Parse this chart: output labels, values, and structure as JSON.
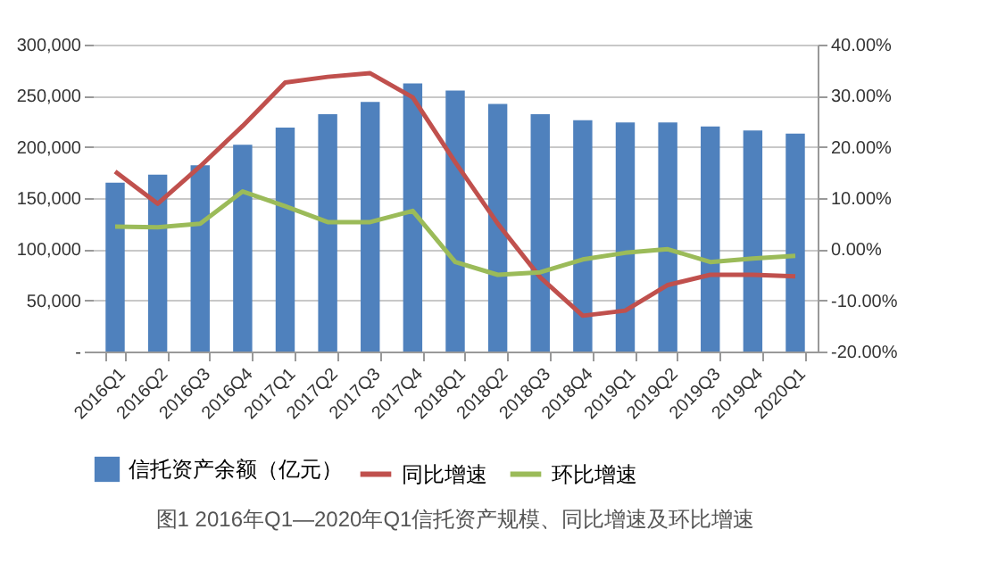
{
  "chart_data": {
    "type": "bar",
    "categories": [
      "2016Q1",
      "2016Q2",
      "2016Q3",
      "2016Q4",
      "2017Q1",
      "2017Q2",
      "2017Q3",
      "2017Q4",
      "2018Q1",
      "2018Q2",
      "2018Q3",
      "2018Q4",
      "2019Q1",
      "2019Q2",
      "2019Q3",
      "2019Q4",
      "2020Q1"
    ],
    "series": [
      {
        "name": "信托资产余额（亿元）",
        "color": "#4f81bd",
        "values": [
          165000,
          173000,
          182000,
          202000,
          219000,
          232000,
          244000,
          262000,
          255000,
          242000,
          232000,
          226000,
          224000,
          224000,
          220000,
          216000,
          213000
        ]
      },
      {
        "name": "同比增速",
        "type": "line",
        "axis": "y2",
        "color": "#c0504d",
        "values": [
          15.2,
          8.9,
          16.2,
          24.1,
          32.6,
          33.7,
          34.4,
          29.7,
          17,
          5,
          -5.5,
          -13,
          -12,
          -7,
          -5,
          -5,
          -5.3
        ]
      },
      {
        "name": "环比增速",
        "type": "line",
        "axis": "y2",
        "color": "#9bbb59",
        "values": [
          4.4,
          4.3,
          5,
          11.3,
          8.4,
          5.3,
          5.3,
          7.5,
          -2.5,
          -5,
          -4.5,
          -2,
          -0.7,
          0,
          -2.5,
          -1.8,
          -1.3
        ]
      }
    ],
    "ylim": [
      0,
      300000
    ],
    "yticks": [
      {
        "value": 0,
        "label": "-"
      },
      {
        "value": 50000,
        "label": "50,000"
      },
      {
        "value": 100000,
        "label": "100,000"
      },
      {
        "value": 150000,
        "label": "150,000"
      },
      {
        "value": 200000,
        "label": "200,000"
      },
      {
        "value": 250000,
        "label": "250,000"
      },
      {
        "value": 300000,
        "label": "300,000"
      }
    ],
    "y2lim": [
      -20,
      40
    ],
    "y2ticks": [
      {
        "value": -20,
        "label": "-20.00%"
      },
      {
        "value": -10,
        "label": "-10.00%"
      },
      {
        "value": 0,
        "label": "0.00%"
      },
      {
        "value": 10,
        "label": "10.00%"
      },
      {
        "value": 20,
        "label": "20.00%"
      },
      {
        "value": 30,
        "label": "30.00%"
      },
      {
        "value": 40,
        "label": "40.00%"
      }
    ],
    "grid": "y",
    "legend": "bottom",
    "marker": "none",
    "line_style": "solid",
    "annotations": [
      "图1  2016年Q1—2020年Q1信托资产规模、同比增速及环比增速"
    ]
  }
}
